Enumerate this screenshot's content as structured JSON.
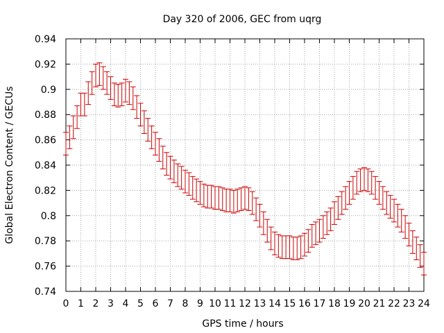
{
  "chart_data": {
    "type": "scatter",
    "title": "Day 320 of 2006, GEC from uqrg",
    "xlabel": "GPS time / hours",
    "ylabel": "Global Electron Content / GECUs",
    "xlim": [
      0,
      24
    ],
    "ylim": [
      0.74,
      0.94
    ],
    "x_ticks": [
      "0",
      "1",
      "2",
      "3",
      "4",
      "5",
      "6",
      "7",
      "8",
      "9",
      "10",
      "11",
      "12",
      "13",
      "14",
      "15",
      "16",
      "17",
      "18",
      "19",
      "20",
      "21",
      "22",
      "23",
      "24"
    ],
    "y_ticks": [
      "0.74",
      "0.76",
      "0.78",
      "0.8",
      "0.82",
      "0.84",
      "0.86",
      "0.88",
      "0.9",
      "0.92",
      "0.94"
    ],
    "grid": true,
    "error_bars": true,
    "series_color": "#cc0000",
    "series": [
      {
        "x": [
          0,
          0.25,
          0.5,
          0.75,
          1,
          1.25,
          1.5,
          1.75,
          2,
          2.25,
          2.5,
          2.75,
          3,
          3.25,
          3.5,
          3.75,
          4,
          4.25,
          4.5,
          4.75,
          5,
          5.25,
          5.5,
          5.75,
          6,
          6.25,
          6.5,
          6.75,
          7,
          7.25,
          7.5,
          7.75,
          8,
          8.25,
          8.5,
          8.75,
          9,
          9.25,
          9.5,
          9.75,
          10,
          10.25,
          10.5,
          10.75,
          11,
          11.25,
          11.5,
          11.75,
          12,
          12.25,
          12.5,
          12.75,
          13,
          13.25,
          13.5,
          13.75,
          14,
          14.25,
          14.5,
          14.75,
          15,
          15.25,
          15.5,
          15.75,
          16,
          16.25,
          16.5,
          16.75,
          17,
          17.25,
          17.5,
          17.75,
          18,
          18.25,
          18.5,
          18.75,
          19,
          19.25,
          19.5,
          19.75,
          20,
          20.25,
          20.5,
          20.75,
          21,
          21.25,
          21.5,
          21.75,
          22,
          22.25,
          22.5,
          22.75,
          23,
          23.25,
          23.5,
          23.75,
          24
        ],
        "y": [
          0.857,
          0.862,
          0.87,
          0.878,
          0.888,
          0.888,
          0.897,
          0.905,
          0.911,
          0.912,
          0.909,
          0.905,
          0.901,
          0.896,
          0.895,
          0.896,
          0.899,
          0.897,
          0.893,
          0.886,
          0.88,
          0.874,
          0.868,
          0.862,
          0.857,
          0.852,
          0.846,
          0.841,
          0.838,
          0.835,
          0.832,
          0.83,
          0.827,
          0.825,
          0.822,
          0.82,
          0.818,
          0.816,
          0.815,
          0.815,
          0.814,
          0.814,
          0.813,
          0.812,
          0.812,
          0.811,
          0.812,
          0.813,
          0.814,
          0.813,
          0.81,
          0.805,
          0.8,
          0.794,
          0.788,
          0.782,
          0.778,
          0.776,
          0.775,
          0.775,
          0.775,
          0.774,
          0.774,
          0.775,
          0.777,
          0.78,
          0.784,
          0.786,
          0.788,
          0.791,
          0.794,
          0.797,
          0.802,
          0.806,
          0.81,
          0.814,
          0.818,
          0.822,
          0.826,
          0.828,
          0.829,
          0.828,
          0.826,
          0.822,
          0.818,
          0.814,
          0.81,
          0.807,
          0.804,
          0.8,
          0.796,
          0.791,
          0.785,
          0.779,
          0.774,
          0.768,
          0.762
        ],
        "yerr": 0.009
      }
    ]
  }
}
